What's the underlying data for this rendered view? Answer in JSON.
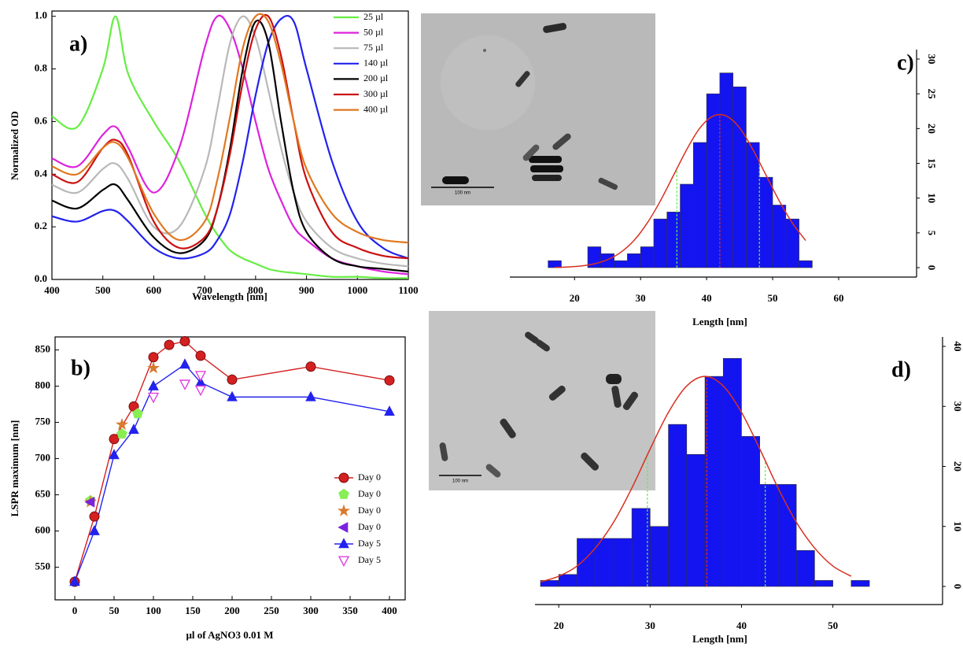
{
  "chart_data": [
    {
      "type": "line",
      "panel_label": "a)",
      "x_label": "Wavelength [nm]",
      "y_label": "Normalized OD",
      "x": [
        400,
        450,
        500,
        525,
        550,
        600,
        650,
        700,
        725,
        750,
        775,
        800,
        825,
        850,
        875,
        900,
        950,
        1000,
        1050,
        1100
      ],
      "xlim": [
        400,
        1100
      ],
      "xticks": [
        400,
        500,
        600,
        700,
        800,
        900,
        1000,
        1100
      ],
      "ylim": [
        0,
        1.02
      ],
      "yticks": [
        {
          "value": 0,
          "label": "0.0"
        },
        0.2,
        0.4,
        0.6,
        0.8,
        {
          "value": 1,
          "label": "1.0"
        }
      ],
      "legend": "upper right",
      "series": [
        {
          "name": "25 µl",
          "color": "#66ee44",
          "values": [
            0.62,
            0.58,
            0.8,
            1.0,
            0.78,
            0.6,
            0.45,
            0.25,
            0.17,
            0.11,
            0.08,
            0.06,
            0.04,
            0.03,
            0.025,
            0.02,
            0.01,
            0.01,
            0.005,
            0.005
          ]
        },
        {
          "name": "50 µl",
          "color": "#dd22dd",
          "values": [
            0.46,
            0.43,
            0.55,
            0.58,
            0.5,
            0.33,
            0.5,
            0.88,
            1.0,
            0.95,
            0.8,
            0.6,
            0.42,
            0.3,
            0.2,
            0.15,
            0.08,
            0.05,
            0.03,
            0.02
          ]
        },
        {
          "name": "75 µl",
          "color": "#b8b8b8",
          "values": [
            0.36,
            0.33,
            0.42,
            0.44,
            0.38,
            0.2,
            0.2,
            0.42,
            0.65,
            0.9,
            1.0,
            0.92,
            0.72,
            0.5,
            0.33,
            0.22,
            0.12,
            0.08,
            0.06,
            0.05
          ]
        },
        {
          "name": "140 µl",
          "color": "#2222ee",
          "values": [
            0.24,
            0.22,
            0.26,
            0.26,
            0.22,
            0.12,
            0.08,
            0.1,
            0.15,
            0.25,
            0.45,
            0.7,
            0.9,
            0.99,
            0.98,
            0.8,
            0.45,
            0.22,
            0.12,
            0.08
          ]
        },
        {
          "name": "200 µl",
          "color": "#000000",
          "values": [
            0.3,
            0.27,
            0.34,
            0.36,
            0.3,
            0.16,
            0.1,
            0.15,
            0.27,
            0.5,
            0.8,
            0.98,
            0.9,
            0.6,
            0.33,
            0.18,
            0.08,
            0.05,
            0.04,
            0.03
          ]
        },
        {
          "name": "300 µl",
          "color": "#cc1111",
          "values": [
            0.4,
            0.37,
            0.5,
            0.53,
            0.47,
            0.22,
            0.12,
            0.16,
            0.27,
            0.48,
            0.75,
            0.95,
            1.0,
            0.85,
            0.6,
            0.38,
            0.18,
            0.12,
            0.09,
            0.08
          ]
        },
        {
          "name": "400 µl",
          "color": "#e07820",
          "values": [
            0.43,
            0.4,
            0.5,
            0.52,
            0.46,
            0.25,
            0.15,
            0.22,
            0.38,
            0.62,
            0.88,
            1.0,
            0.98,
            0.82,
            0.6,
            0.42,
            0.25,
            0.18,
            0.15,
            0.14
          ]
        }
      ]
    },
    {
      "type": "scatter",
      "panel_label": "b)",
      "x_label": "µl of AgNO3 0.01 M",
      "y_label": "LSPR maximum [nm]",
      "xlim": [
        -25,
        420
      ],
      "xticks": [
        0,
        50,
        100,
        150,
        200,
        250,
        300,
        350,
        400
      ],
      "ylim": [
        505,
        868
      ],
      "yticks": [
        550,
        600,
        650,
        700,
        750,
        800,
        850
      ],
      "legend": "lower right",
      "series": [
        {
          "name": "Day 0",
          "color": "#d42020",
          "marker": "circle",
          "line": true,
          "x": [
            0,
            25,
            50,
            75,
            100,
            120,
            140,
            160,
            200,
            300,
            400
          ],
          "values": [
            530,
            620,
            727,
            772,
            840,
            857,
            862,
            842,
            809,
            827,
            808
          ]
        },
        {
          "name": "Day 0",
          "color": "#88ee55",
          "marker": "pentagon",
          "line": false,
          "x": [
            20,
            60,
            80
          ],
          "values": [
            642,
            734,
            762
          ]
        },
        {
          "name": "Day 0",
          "color": "#d87a30",
          "marker": "star",
          "line": false,
          "x": [
            20,
            60,
            100
          ],
          "values": [
            640,
            747,
            825
          ]
        },
        {
          "name": "Day 0",
          "color": "#7a22dd",
          "marker": "triangle-left",
          "line": false,
          "x": [
            20
          ],
          "values": [
            640
          ]
        },
        {
          "name": "Day 5",
          "color": "#2222ee",
          "marker": "triangle-up",
          "line": true,
          "x": [
            0,
            25,
            50,
            75,
            100,
            140,
            160,
            200,
            300,
            400
          ],
          "values": [
            530,
            600,
            705,
            740,
            800,
            830,
            805,
            785,
            785,
            765
          ]
        },
        {
          "name": "Day 5",
          "color": "#e040e0",
          "marker": "triangle-down",
          "line": false,
          "x": [
            100,
            140,
            160,
            160
          ],
          "values": [
            785,
            803,
            815,
            795
          ]
        }
      ]
    },
    {
      "type": "histogram",
      "panel_label": "c)",
      "x_label": "Length [nm]",
      "color": "#1414f0",
      "bins": [
        16,
        18,
        20,
        22,
        24,
        26,
        28,
        30,
        32,
        34,
        36,
        38,
        40,
        42,
        44,
        46,
        48,
        50,
        52,
        54,
        56
      ],
      "counts": [
        1,
        0,
        0,
        3,
        2,
        1,
        2,
        3,
        7,
        8,
        12,
        18,
        25,
        28,
        26,
        18,
        13,
        9,
        7,
        1
      ],
      "xlim": [
        10.2,
        71.8
      ],
      "xticks": [
        20,
        30,
        40,
        50,
        60
      ],
      "ylim": [
        0,
        30
      ],
      "yticks": [
        0,
        5,
        10,
        15,
        20,
        25,
        30
      ],
      "fit": {
        "color": "#d83020",
        "x": [
          17,
          19,
          21,
          23,
          25,
          27,
          29,
          31,
          33,
          35,
          37,
          39,
          41,
          43,
          45,
          47,
          49,
          51,
          53,
          55
        ],
        "values": [
          0.04,
          0.1,
          0.24,
          0.55,
          1.15,
          2.2,
          3.9,
          6.4,
          9.6,
          13.3,
          17.0,
          20.1,
          21.8,
          21.8,
          20.1,
          17.0,
          13.3,
          9.6,
          6.4,
          3.9
        ]
      },
      "reference_lines": [
        {
          "x": 35.5,
          "color": "#66ee44"
        },
        {
          "x": 42,
          "color": "#d83020"
        },
        {
          "x": 48,
          "color": "#66ee44"
        }
      ]
    },
    {
      "type": "histogram",
      "panel_label": "d)",
      "x_label": "Length [nm]",
      "color": "#1414f0",
      "bins": [
        18,
        20,
        22,
        24,
        26,
        28,
        30,
        32,
        34,
        36,
        38,
        40,
        42,
        44,
        46,
        48,
        50,
        52,
        54
      ],
      "counts": [
        1,
        2,
        8,
        8,
        8,
        13,
        10,
        27,
        22,
        35,
        38,
        25,
        17,
        17,
        6,
        1,
        0,
        1
      ],
      "xlim": [
        17.4,
        62
      ],
      "xticks": [
        20,
        30,
        40,
        50
      ],
      "ylim": [
        0,
        40
      ],
      "yticks": [
        0,
        10,
        20,
        30,
        40
      ],
      "fit": {
        "color": "#d83020",
        "x": [
          18,
          20,
          22,
          24,
          26,
          28,
          30,
          32,
          34,
          36,
          38,
          40,
          42,
          44,
          46,
          48,
          50,
          52
        ],
        "values": [
          0.76,
          1.7,
          3.4,
          6.4,
          10.7,
          16.4,
          22.9,
          29.0,
          33.4,
          35,
          33.4,
          29.0,
          22.9,
          16.4,
          10.7,
          6.4,
          3.4,
          1.7
        ]
      },
      "reference_lines": [
        {
          "x": 29.7,
          "color": "#66ee44"
        },
        {
          "x": 36.2,
          "color": "#d83020"
        },
        {
          "x": 42.6,
          "color": "#66ee44"
        }
      ]
    }
  ],
  "images": [
    {
      "scale_bar": "100 nm"
    },
    {
      "scale_bar": "100 nm"
    }
  ]
}
